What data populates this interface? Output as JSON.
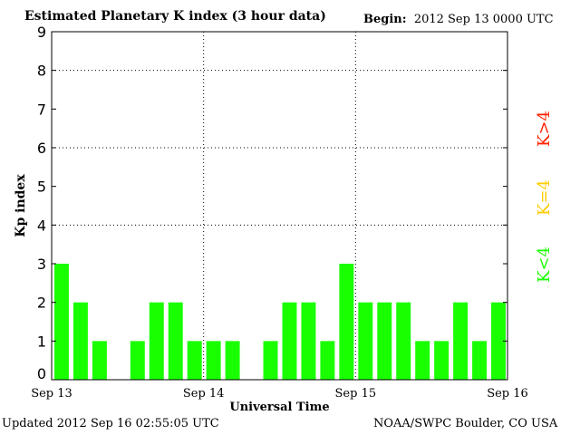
{
  "chart_data": {
    "type": "bar",
    "title": "Estimated Planetary K index (3 hour data)",
    "begin_label": "Begin:",
    "begin_value": "2012 Sep 13 0000 UTC",
    "xlabel": "Universal Time",
    "ylabel": "Kp index",
    "ylim": [
      0,
      9
    ],
    "yticks": [
      "0",
      "1",
      "2",
      "3",
      "4",
      "5",
      "6",
      "7",
      "8",
      "9"
    ],
    "xticks": [
      "Sep 13",
      "Sep 14",
      "Sep 15",
      "Sep 16"
    ],
    "values": [
      3,
      2,
      1,
      0,
      1,
      2,
      2,
      1,
      1,
      1,
      0,
      1,
      2,
      2,
      1,
      3,
      2,
      2,
      2,
      1,
      1,
      2,
      1,
      2
    ],
    "gridlines_y": [
      4,
      6,
      8
    ],
    "legend": [
      {
        "label": "K<4",
        "color": "#00ff00"
      },
      {
        "label": "K=4",
        "color": "#ffcc00"
      },
      {
        "label": "K>4",
        "color": "#ff2000"
      }
    ],
    "bar_color": "#1aff00"
  },
  "footer": {
    "updated": "Updated 2012 Sep 16 02:55:05 UTC",
    "credit": "NOAA/SWPC Boulder, CO USA"
  }
}
